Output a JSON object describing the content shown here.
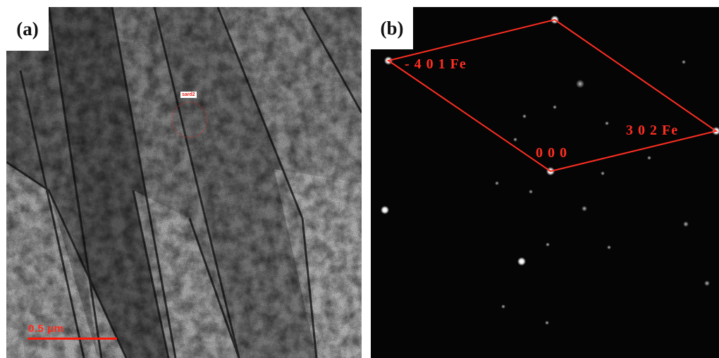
{
  "panel_a": {
    "label": "(a)",
    "scale_bar_text": "0.5 μm",
    "selected_area_tag": "sard2"
  },
  "panel_b": {
    "label": "(b)",
    "indices": {
      "spot_minus401": "- 4 0 1 Fe",
      "spot_000": "0 0 0",
      "spot_302": "3 0 2 Fe"
    }
  },
  "colors": {
    "annotation_red": "#ff2e22",
    "diffraction_background": "#050505"
  }
}
